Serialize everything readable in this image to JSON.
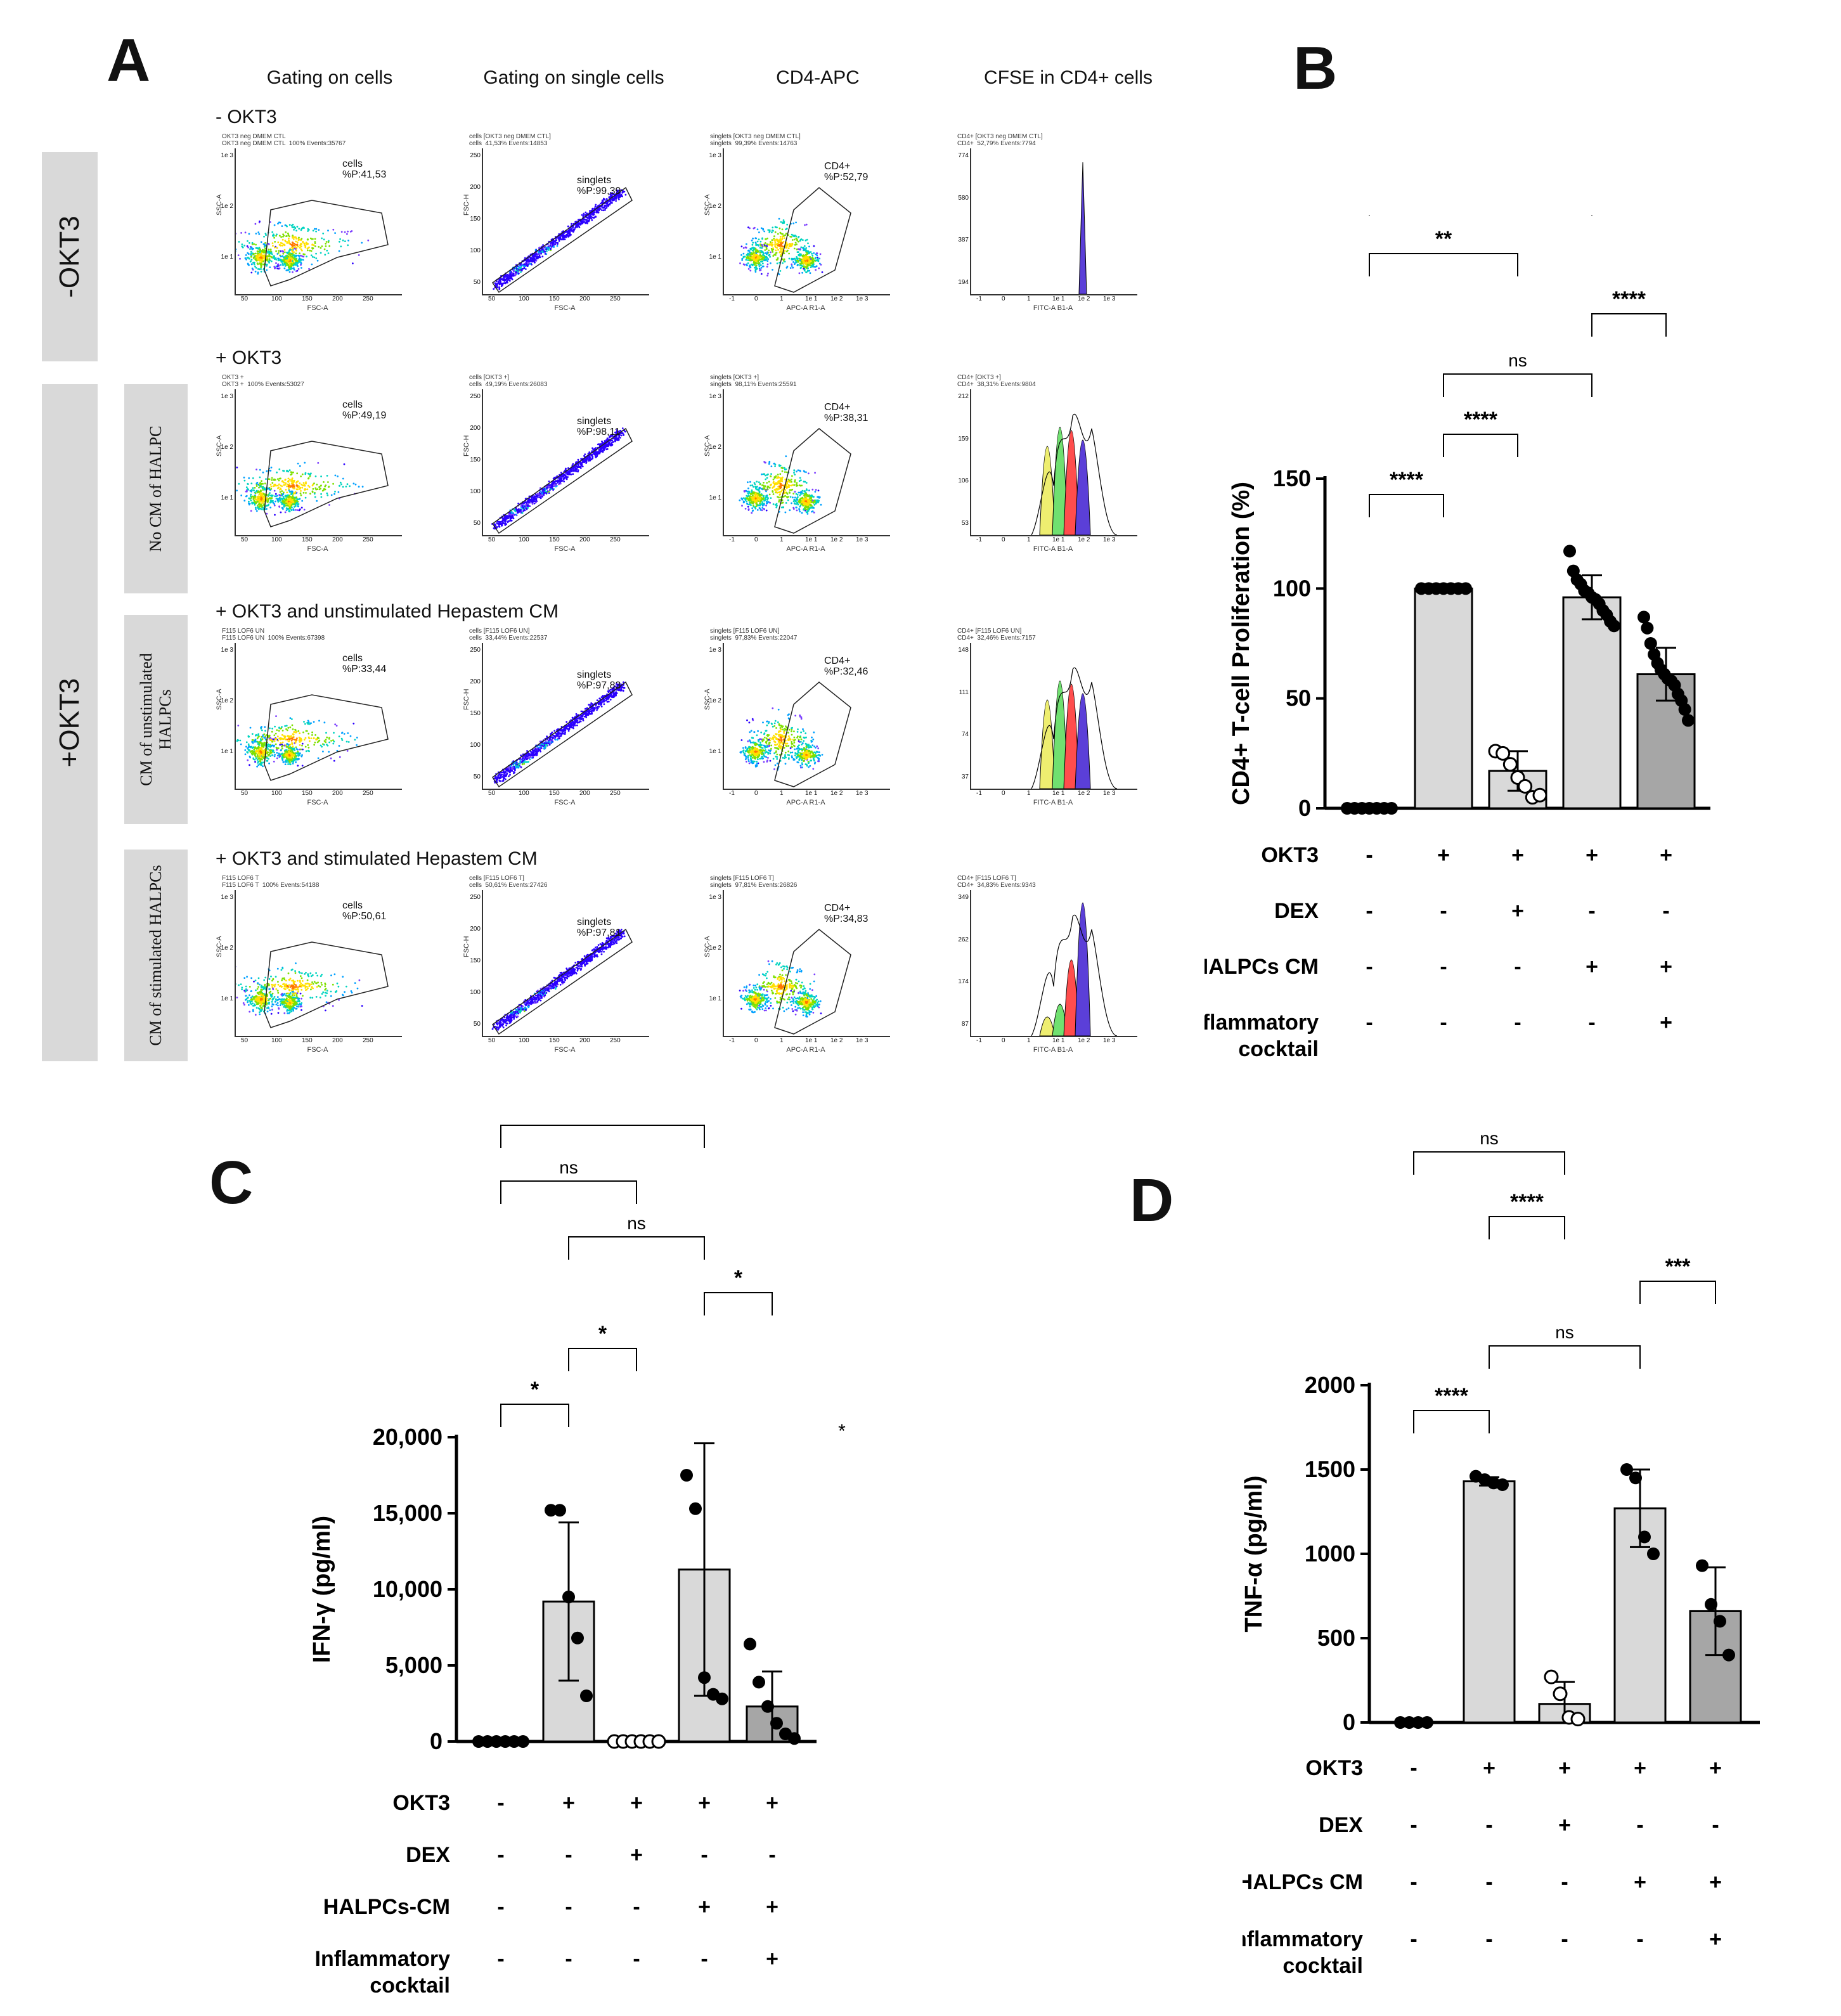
{
  "panel_a": {
    "letter": "A",
    "column_headers": [
      "Gating on cells",
      "Gating on single cells",
      "CD4-APC",
      "CFSE in CD4+ cells"
    ],
    "side_labels": {
      "neg": "-OKT3",
      "pos": "+OKT3"
    },
    "sub_labels": [
      "No CM of HALPC",
      "CM of unstimulated HALPCs",
      "CM of stimulated HALPCs"
    ],
    "rows": [
      {
        "title": "- OKT3",
        "plots": [
          {
            "header": "OKT3 neg DMEM CTL\nOKT3 neg DMEM CTL  100% Events:35767",
            "gate": "cells\n%P:41,53",
            "xlabel": "FSC-A",
            "ylabel": "SSC-A",
            "yticks": [
              "1e 3",
              "1e 2",
              "1e 1"
            ],
            "xticks": [
              "50",
              "100",
              "150",
              "200",
              "250"
            ]
          },
          {
            "header": "cells [OKT3 neg DMEM CTL]\ncells  41,53% Events:14853",
            "gate": "singlets\n%P:99,39",
            "xlabel": "FSC-A",
            "ylabel": "FSC-H",
            "yticks": [
              "250",
              "200",
              "150",
              "100",
              "50"
            ],
            "xticks": [
              "50",
              "100",
              "150",
              "200",
              "250"
            ]
          },
          {
            "header": "singlets [OKT3 neg DMEM CTL]\nsinglets  99,39% Events:14763",
            "gate": "CD4+\n%P:52,79",
            "xlabel": "APC-A R1-A",
            "ylabel": "SSC-A",
            "yticks": [
              "1e 3",
              "1e 2",
              "1e 1"
            ],
            "xticks": [
              "-1",
              "0",
              "1",
              "1e 1",
              "1e 2",
              "1e 3"
            ]
          },
          {
            "header": "CD4+ [OKT3 neg DMEM CTL]\nCD4+  52,79% Events:7794",
            "gate": "",
            "xlabel": "FITC-A B1-A",
            "ylabel": "",
            "yticks": [
              "774",
              "580",
              "387",
              "194"
            ],
            "xticks": [
              "-1",
              "0",
              "1",
              "1e 1",
              "1e 2",
              "1e 3"
            ]
          }
        ]
      },
      {
        "title": "+ OKT3",
        "plots": [
          {
            "header": "OKT3 +\nOKT3 +  100% Events:53027",
            "gate": "cells\n%P:49,19",
            "xlabel": "FSC-A",
            "ylabel": "SSC-A",
            "yticks": [
              "1e 3",
              "1e 2",
              "1e 1"
            ],
            "xticks": [
              "50",
              "100",
              "150",
              "200",
              "250"
            ]
          },
          {
            "header": "cells [OKT3 +]\ncells  49,19% Events:26083",
            "gate": "singlets\n%P:98,11",
            "xlabel": "FSC-A",
            "ylabel": "FSC-H",
            "yticks": [
              "250",
              "200",
              "150",
              "100",
              "50"
            ],
            "xticks": [
              "50",
              "100",
              "150",
              "200",
              "250"
            ]
          },
          {
            "header": "singlets [OKT3 +]\nsinglets  98,11% Events:25591",
            "gate": "CD4+\n%P:38,31",
            "xlabel": "APC-A R1-A",
            "ylabel": "SSC-A",
            "yticks": [
              "1e 3",
              "1e 2",
              "1e 1"
            ],
            "xticks": [
              "-1",
              "0",
              "1",
              "1e 1",
              "1e 2",
              "1e 3"
            ]
          },
          {
            "header": "CD4+ [OKT3 +]\nCD4+  38,31% Events:9804",
            "gate": "",
            "xlabel": "FITC-A B1-A",
            "ylabel": "",
            "yticks": [
              "212",
              "159",
              "106",
              "53"
            ],
            "xticks": [
              "-1",
              "0",
              "1",
              "1e 1",
              "1e 2",
              "1e 3"
            ]
          }
        ]
      },
      {
        "title": "+ OKT3 and unstimulated Hepastem CM",
        "plots": [
          {
            "header": "F115 LOF6 UN\nF115 LOF6 UN  100% Events:67398",
            "gate": "cells\n%P:33,44",
            "xlabel": "FSC-A",
            "ylabel": "SSC-A",
            "yticks": [
              "1e 3",
              "1e 2",
              "1e 1"
            ],
            "xticks": [
              "50",
              "100",
              "150",
              "200",
              "250"
            ]
          },
          {
            "header": "cells [F115 LOF6 UN]\ncells  33,44% Events:22537",
            "gate": "singlets\n%P:97,83",
            "xlabel": "FSC-A",
            "ylabel": "FSC-H",
            "yticks": [
              "250",
              "200",
              "150",
              "100",
              "50"
            ],
            "xticks": [
              "50",
              "100",
              "150",
              "200",
              "250"
            ]
          },
          {
            "header": "singlets [F115 LOF6 UN]\nsinglets  97,83% Events:22047",
            "gate": "CD4+\n%P:32,46",
            "xlabel": "APC-A R1-A",
            "ylabel": "SSC-A",
            "yticks": [
              "1e 3",
              "1e 2",
              "1e 1"
            ],
            "xticks": [
              "-1",
              "0",
              "1",
              "1e 1",
              "1e 2",
              "1e 3"
            ]
          },
          {
            "header": "CD4+ [F115 LOF6 UN]\nCD4+  32,46% Events:7157",
            "gate": "",
            "xlabel": "FITC-A B1-A",
            "ylabel": "",
            "yticks": [
              "148",
              "111",
              "74",
              "37"
            ],
            "xticks": [
              "-1",
              "0",
              "1",
              "1e 1",
              "1e 2",
              "1e 3"
            ]
          }
        ]
      },
      {
        "title": "+ OKT3 and stimulated Hepastem CM",
        "plots": [
          {
            "header": "F115 LOF6 T\nF115 LOF6 T  100% Events:54188",
            "gate": "cells\n%P:50,61",
            "xlabel": "FSC-A",
            "ylabel": "SSC-A",
            "yticks": [
              "1e 3",
              "1e 2",
              "1e 1"
            ],
            "xticks": [
              "50",
              "100",
              "150",
              "200",
              "250"
            ]
          },
          {
            "header": "cells [F115 LOF6 T]\ncells  50,61% Events:27426",
            "gate": "singlets\n%P:97,81",
            "xlabel": "FSC-A",
            "ylabel": "FSC-H",
            "yticks": [
              "250",
              "200",
              "150",
              "100",
              "50"
            ],
            "xticks": [
              "50",
              "100",
              "150",
              "200",
              "250"
            ]
          },
          {
            "header": "singlets [F115 LOF6 T]\nsinglets  97,81% Events:26826",
            "gate": "CD4+\n%P:34,83",
            "xlabel": "APC-A R1-A",
            "ylabel": "SSC-A",
            "yticks": [
              "1e 3",
              "1e 2",
              "1e 1"
            ],
            "xticks": [
              "-1",
              "0",
              "1",
              "1e 1",
              "1e 2",
              "1e 3"
            ]
          },
          {
            "header": "CD4+ [F115 LOF6 T]\nCD4+  34,83% Events:9343",
            "gate": "",
            "xlabel": "FITC-A B1-A",
            "ylabel": "",
            "yticks": [
              "349",
              "262",
              "174",
              "87"
            ],
            "xticks": [
              "-1",
              "0",
              "1",
              "1e 1",
              "1e 2",
              "1e 3"
            ]
          }
        ]
      }
    ]
  },
  "chart_data": [
    {
      "panel": "B",
      "type": "bar",
      "ylabel": "CD4+ T-cell Proliferation (%)",
      "ylim": [
        0,
        150
      ],
      "yticks": [
        0,
        50,
        100,
        150
      ],
      "bars": [
        {
          "mean": 0,
          "sd": 0,
          "fill": "#ffffff",
          "points": [
            0,
            0,
            0,
            0,
            0,
            0,
            0
          ],
          "open": false
        },
        {
          "mean": 100,
          "sd": 0,
          "fill": "#d9d9d9",
          "points": [
            100,
            100,
            100,
            100,
            100,
            100,
            100
          ],
          "open": false
        },
        {
          "mean": 17,
          "sd": 9,
          "fill": "#d9d9d9",
          "points": [
            26,
            25,
            20,
            14,
            10,
            5,
            6
          ],
          "open": true
        },
        {
          "mean": 96,
          "sd": 10,
          "fill": "#d9d9d9",
          "points": [
            117,
            108,
            104,
            102,
            99,
            98,
            96,
            95,
            93,
            90,
            88,
            85,
            83
          ],
          "open": false
        },
        {
          "mean": 61,
          "sd": 12,
          "fill": "#a6a6a6",
          "points": [
            87,
            82,
            75,
            70,
            66,
            63,
            61,
            59,
            58,
            56,
            52,
            49,
            45,
            40
          ],
          "open": false
        }
      ],
      "table": [
        {
          "label": "OKT3",
          "values": [
            "-",
            "+",
            "+",
            "+",
            "+"
          ]
        },
        {
          "label": "DEX",
          "values": [
            "-",
            "-",
            "+",
            "-",
            "-"
          ]
        },
        {
          "label": "HALPCs CM",
          "values": [
            "-",
            "-",
            "-",
            "+",
            "+"
          ]
        },
        {
          "label": "Inflammatory cocktail",
          "values": [
            "-",
            "-",
            "-",
            "-",
            "+"
          ]
        }
      ],
      "brackets": [
        {
          "from": 0,
          "to": 1,
          "label": "****"
        },
        {
          "from": 1,
          "to": 2,
          "label": "****"
        },
        {
          "from": 1,
          "to": 3,
          "label": "ns"
        },
        {
          "from": 3,
          "to": 4,
          "label": "****"
        },
        {
          "from": 0,
          "to": 2,
          "label": "**"
        },
        {
          "from": 0,
          "to": 3,
          "label": "****"
        },
        {
          "from": 0,
          "to": 4,
          "label": "****"
        }
      ]
    },
    {
      "panel": "C",
      "type": "bar",
      "ylabel": "IFN-γ (pg/ml)",
      "ylim": [
        0,
        20000
      ],
      "yticks": [
        "0",
        "5,000",
        "10,000",
        "15,000",
        "20,000"
      ],
      "ytick_values": [
        0,
        5000,
        10000,
        15000,
        20000
      ],
      "bars": [
        {
          "mean": 0,
          "sd": 0,
          "fill": "#ffffff",
          "points": [
            0,
            0,
            0,
            0,
            0,
            0
          ],
          "open": false
        },
        {
          "mean": 9200,
          "sd": 5200,
          "fill": "#d9d9d9",
          "points": [
            15200,
            15200,
            9500,
            6800,
            3000
          ],
          "open": false
        },
        {
          "mean": 0,
          "sd": 0,
          "fill": "#ffffff",
          "points": [
            0,
            0,
            0,
            0,
            0,
            0
          ],
          "open": true
        },
        {
          "mean": 11300,
          "sd": 8300,
          "fill": "#d9d9d9",
          "points": [
            17500,
            15300,
            4200,
            3100,
            2800
          ],
          "open": false
        },
        {
          "mean": 2300,
          "sd": 2300,
          "fill": "#a6a6a6",
          "points": [
            6400,
            3900,
            2300,
            1200,
            500,
            200
          ],
          "open": false
        }
      ],
      "table": [
        {
          "label": "OKT3",
          "values": [
            "-",
            "+",
            "+",
            "+",
            "+"
          ]
        },
        {
          "label": "DEX",
          "values": [
            "-",
            "-",
            "+",
            "-",
            "-"
          ]
        },
        {
          "label": "HALPCs-CM",
          "values": [
            "-",
            "-",
            "-",
            "+",
            "+"
          ]
        },
        {
          "label": "Inflammatory cocktail",
          "values": [
            "-",
            "-",
            "-",
            "-",
            "+"
          ]
        }
      ],
      "brackets": [
        {
          "from": 0,
          "to": 1,
          "label": "*"
        },
        {
          "from": 1,
          "to": 2,
          "label": "*"
        },
        {
          "from": 3,
          "to": 4,
          "label": "*"
        },
        {
          "from": 1,
          "to": 3,
          "label": "ns"
        },
        {
          "from": 0,
          "to": 2,
          "label": "ns"
        },
        {
          "from": 0,
          "to": 3,
          "label": "**"
        },
        {
          "from": 0,
          "to": 4,
          "label": "ns"
        }
      ],
      "extra_star": "*"
    },
    {
      "panel": "D",
      "type": "bar",
      "ylabel": "TNF-α (pg/ml)",
      "ylim": [
        0,
        2000
      ],
      "yticks": [
        0,
        500,
        1000,
        1500,
        2000
      ],
      "bars": [
        {
          "mean": 0,
          "sd": 0,
          "fill": "#ffffff",
          "points": [
            0,
            0,
            0,
            0
          ],
          "open": false
        },
        {
          "mean": 1430,
          "sd": 25,
          "fill": "#d9d9d9",
          "points": [
            1460,
            1440,
            1420,
            1410
          ],
          "open": false
        },
        {
          "mean": 110,
          "sd": 130,
          "fill": "#d9d9d9",
          "points": [
            270,
            170,
            30,
            20
          ],
          "open": true
        },
        {
          "mean": 1270,
          "sd": 230,
          "fill": "#d9d9d9",
          "points": [
            1500,
            1450,
            1100,
            1000
          ],
          "open": false
        },
        {
          "mean": 660,
          "sd": 260,
          "fill": "#a6a6a6",
          "points": [
            930,
            700,
            600,
            400
          ],
          "open": false
        }
      ],
      "table": [
        {
          "label": "OKT3",
          "values": [
            "-",
            "+",
            "+",
            "+",
            "+"
          ]
        },
        {
          "label": "DEX",
          "values": [
            "-",
            "-",
            "+",
            "-",
            "-"
          ]
        },
        {
          "label": "HALPCs CM",
          "values": [
            "-",
            "-",
            "-",
            "+",
            "+"
          ]
        },
        {
          "label": "Inflammatory cocktail",
          "values": [
            "-",
            "-",
            "-",
            "-",
            "+"
          ]
        }
      ],
      "brackets": [
        {
          "from": 0,
          "to": 1,
          "label": "****"
        },
        {
          "from": 1,
          "to": 3,
          "label": "ns"
        },
        {
          "from": 3,
          "to": 4,
          "label": "***"
        },
        {
          "from": 1,
          "to": 2,
          "label": "****"
        },
        {
          "from": 0,
          "to": 2,
          "label": "ns"
        },
        {
          "from": 0,
          "to": 3,
          "label": "****"
        },
        {
          "from": 0,
          "to": 4,
          "label": "***"
        }
      ]
    }
  ]
}
